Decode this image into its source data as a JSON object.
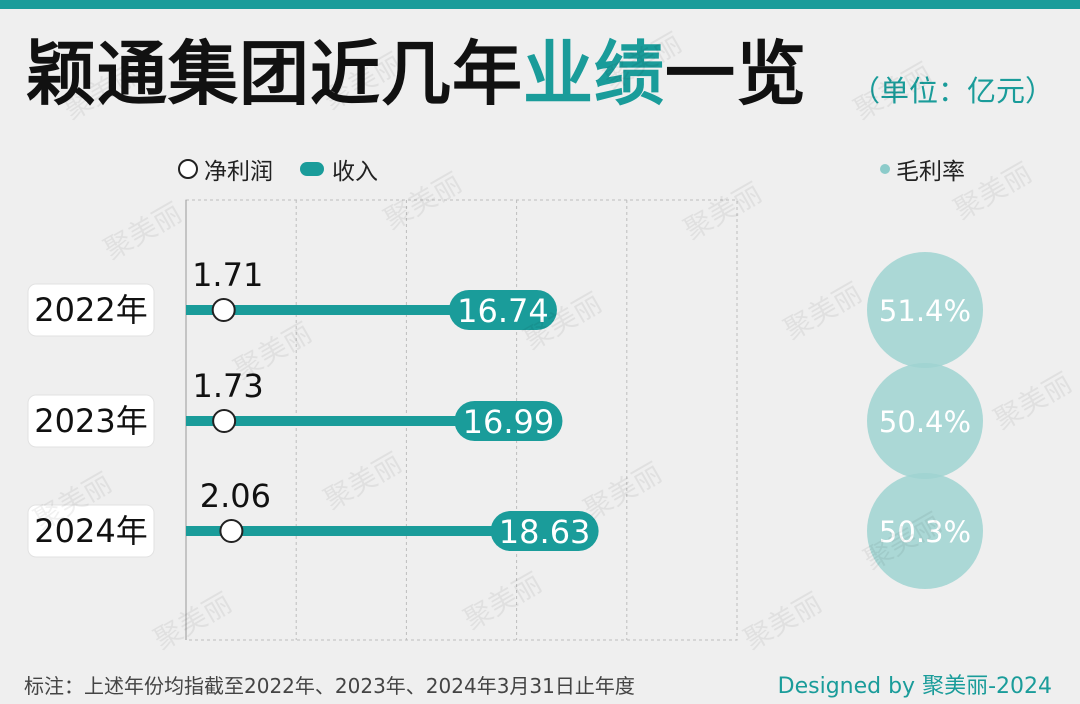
{
  "header": {
    "title_part1": "颖通集团近几年",
    "title_highlight": "业绩",
    "title_part2": "一览",
    "unit": "（单位：亿元）"
  },
  "legend": {
    "net_profit": "净利润",
    "revenue": "收入",
    "gross_margin": "毛利率"
  },
  "chart_data": {
    "type": "bar",
    "categories": [
      "2022年",
      "2023年",
      "2024年"
    ],
    "series": [
      {
        "name": "收入",
        "values": [
          16.74,
          16.99,
          18.63
        ],
        "labels": [
          "16.74",
          "16.99",
          "18.63"
        ]
      },
      {
        "name": "净利润",
        "values": [
          1.71,
          1.73,
          2.06
        ],
        "labels": [
          "1.71",
          "1.73",
          "2.06"
        ]
      },
      {
        "name": "毛利率",
        "values": [
          51.4,
          50.4,
          50.3
        ],
        "labels": [
          "51.4%",
          "50.4%",
          "50.3%"
        ]
      }
    ],
    "xlim": [
      0,
      25
    ],
    "grid": true,
    "legend_position": "top"
  },
  "colors": {
    "accent": "#1a9c9a",
    "margin_circle": "#9fd3d1",
    "background": "#efefef"
  },
  "footer": {
    "note": "标注：上述年份均指截至2022年、2023年、2024年3月31日止年度",
    "credit": "Designed by 聚美丽-2024"
  },
  "watermark": "聚美丽"
}
